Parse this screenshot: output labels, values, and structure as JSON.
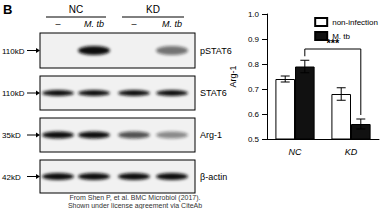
{
  "panel_label": "B",
  "blot": {
    "groups": [
      "NC",
      "KD"
    ],
    "lanes": [
      "–",
      "M. tb",
      "–",
      "M. tb"
    ],
    "rows": [
      {
        "size": "110kD",
        "label": "pSTAT6"
      },
      {
        "size": "110kD",
        "label": "STAT6"
      },
      {
        "size": "35kD",
        "label": "Arg-1"
      },
      {
        "size": "42kD",
        "label": "β-actin"
      }
    ]
  },
  "chart_data": {
    "type": "bar",
    "y_label": "Arg-1",
    "categories": [
      "NC",
      "KD"
    ],
    "series": [
      {
        "name": "non-infection",
        "color": "#ffffff",
        "values": [
          0.74,
          0.68
        ],
        "errors": [
          0.012,
          0.025
        ]
      },
      {
        "name": "M. tb",
        "color": "#111111",
        "values": [
          0.79,
          0.56
        ],
        "errors": [
          0.025,
          0.02
        ]
      }
    ],
    "ylim": [
      0.5,
      1
    ],
    "yticks": [
      0.5,
      0.6,
      0.7,
      0.8,
      0.9,
      {
        "value": 1,
        "label": "1.0"
      }
    ],
    "legend": "top-right",
    "grid": false,
    "annotations": [
      {
        "text": "***",
        "y": 0.86,
        "from": {
          "category": 0,
          "series": 1
        },
        "to": {
          "category": 1,
          "series": 1
        }
      }
    ]
  },
  "credit": [
    "From Shen P, et al. BMC Microbiol (2017).",
    "Shown under license agreement via CiteAb"
  ]
}
